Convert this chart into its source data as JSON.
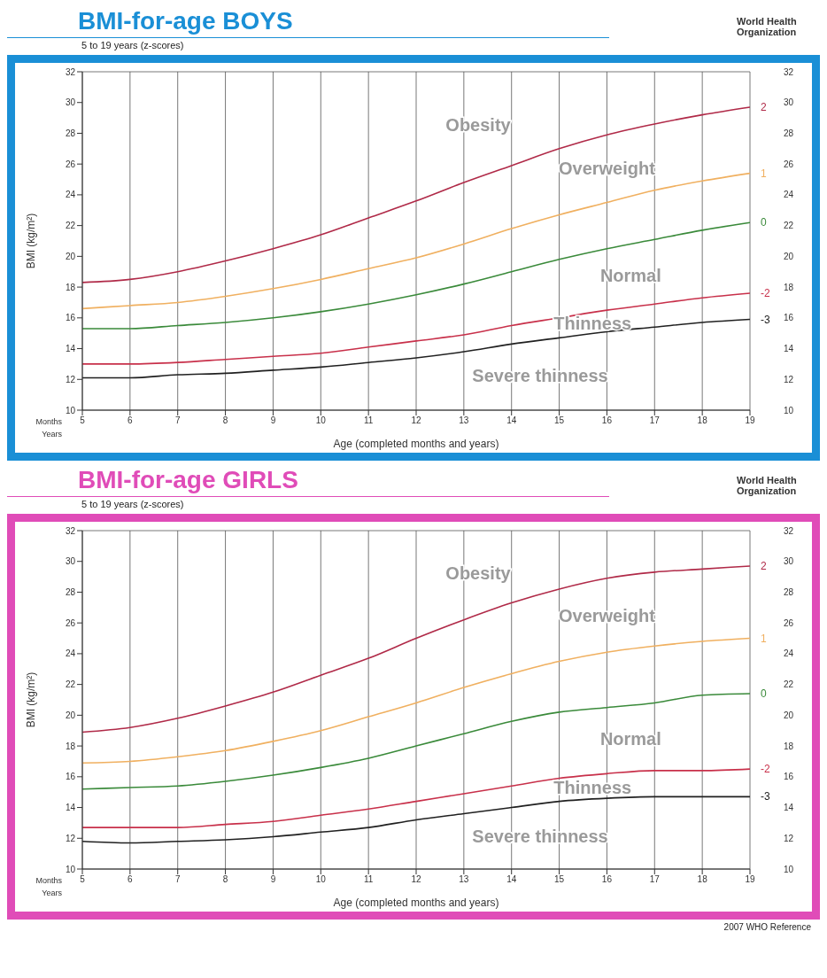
{
  "chart_data": [
    {
      "type": "line",
      "title": "BMI-for-age  BOYS",
      "subtitle": "5 to 19 years (z-scores)",
      "xlabel": "Age (completed months and years)",
      "ylabel": "BMI (kg/m²)",
      "x": [
        5,
        6,
        7,
        8,
        9,
        10,
        11,
        12,
        13,
        14,
        15,
        16,
        17,
        18,
        19
      ],
      "series": [
        {
          "name": "2",
          "color": "#b02a48",
          "values": [
            18.3,
            18.5,
            19.0,
            19.7,
            20.5,
            21.4,
            22.5,
            23.6,
            24.8,
            25.9,
            27.0,
            27.9,
            28.6,
            29.2,
            29.7
          ]
        },
        {
          "name": "1",
          "color": "#f0b060",
          "values": [
            16.6,
            16.8,
            17.0,
            17.4,
            17.9,
            18.5,
            19.2,
            19.9,
            20.8,
            21.8,
            22.7,
            23.5,
            24.3,
            24.9,
            25.4
          ]
        },
        {
          "name": "0",
          "color": "#3a8a3a",
          "values": [
            15.3,
            15.3,
            15.5,
            15.7,
            16.0,
            16.4,
            16.9,
            17.5,
            18.2,
            19.0,
            19.8,
            20.5,
            21.1,
            21.7,
            22.2
          ]
        },
        {
          "name": "-2",
          "color": "#c8304a",
          "values": [
            13.0,
            13.0,
            13.1,
            13.3,
            13.5,
            13.7,
            14.1,
            14.5,
            14.9,
            15.5,
            16.0,
            16.5,
            16.9,
            17.3,
            17.6
          ]
        },
        {
          "name": "-3",
          "color": "#202020",
          "values": [
            12.1,
            12.1,
            12.3,
            12.4,
            12.6,
            12.8,
            13.1,
            13.4,
            13.8,
            14.3,
            14.7,
            15.1,
            15.4,
            15.7,
            15.9
          ]
        }
      ],
      "xlim": [
        5,
        19
      ],
      "xticks": [
        5,
        6,
        7,
        8,
        9,
        10,
        11,
        12,
        13,
        14,
        15,
        16,
        17,
        18,
        19
      ],
      "ylim": [
        10,
        32
      ],
      "yticks": [
        10,
        12,
        14,
        16,
        18,
        20,
        22,
        24,
        26,
        28,
        30,
        32
      ],
      "y2lim": [
        10,
        32
      ],
      "y2ticks": [
        10,
        12,
        14,
        16,
        18,
        20,
        22,
        24,
        26,
        28,
        30,
        32
      ],
      "grid": true,
      "annotations": [
        "Obesity",
        "Overweight",
        "Normal",
        "Thinness",
        "Severe thinness",
        "World Health Organization",
        "Months",
        "Years"
      ]
    },
    {
      "type": "line",
      "title": "BMI-for-age  GIRLS",
      "subtitle": "5 to 19 years (z-scores)",
      "xlabel": "Age (completed months and years)",
      "ylabel": "BMI (kg/m²)",
      "x": [
        5,
        6,
        7,
        8,
        9,
        10,
        11,
        12,
        13,
        14,
        15,
        16,
        17,
        18,
        19
      ],
      "series": [
        {
          "name": "2",
          "color": "#b02a48",
          "values": [
            18.9,
            19.2,
            19.8,
            20.6,
            21.5,
            22.6,
            23.7,
            25.0,
            26.2,
            27.3,
            28.2,
            28.9,
            29.3,
            29.5,
            29.7
          ]
        },
        {
          "name": "1",
          "color": "#f0b060",
          "values": [
            16.9,
            17.0,
            17.3,
            17.7,
            18.3,
            19.0,
            19.9,
            20.8,
            21.8,
            22.7,
            23.5,
            24.1,
            24.5,
            24.8,
            25.0
          ]
        },
        {
          "name": "0",
          "color": "#3a8a3a",
          "values": [
            15.2,
            15.3,
            15.4,
            15.7,
            16.1,
            16.6,
            17.2,
            18.0,
            18.8,
            19.6,
            20.2,
            20.5,
            20.8,
            21.3,
            21.4
          ]
        },
        {
          "name": "-2",
          "color": "#c8304a",
          "values": [
            12.7,
            12.7,
            12.7,
            12.9,
            13.1,
            13.5,
            13.9,
            14.4,
            14.9,
            15.4,
            15.9,
            16.2,
            16.4,
            16.4,
            16.5
          ]
        },
        {
          "name": "-3",
          "color": "#202020",
          "values": [
            11.8,
            11.7,
            11.8,
            11.9,
            12.1,
            12.4,
            12.7,
            13.2,
            13.6,
            14.0,
            14.4,
            14.6,
            14.7,
            14.7,
            14.7
          ]
        }
      ],
      "xlim": [
        5,
        19
      ],
      "xticks": [
        5,
        6,
        7,
        8,
        9,
        10,
        11,
        12,
        13,
        14,
        15,
        16,
        17,
        18,
        19
      ],
      "ylim": [
        10,
        32
      ],
      "yticks": [
        10,
        12,
        14,
        16,
        18,
        20,
        22,
        24,
        26,
        28,
        30,
        32
      ],
      "y2lim": [
        10,
        32
      ],
      "y2ticks": [
        10,
        12,
        14,
        16,
        18,
        20,
        22,
        24,
        26,
        28,
        30,
        32
      ],
      "grid": true,
      "annotations": [
        "Obesity",
        "Overweight",
        "Normal",
        "Thinness",
        "Severe thinness",
        "World Health Organization",
        "Months",
        "Years",
        "2007 WHO Reference"
      ]
    }
  ]
}
